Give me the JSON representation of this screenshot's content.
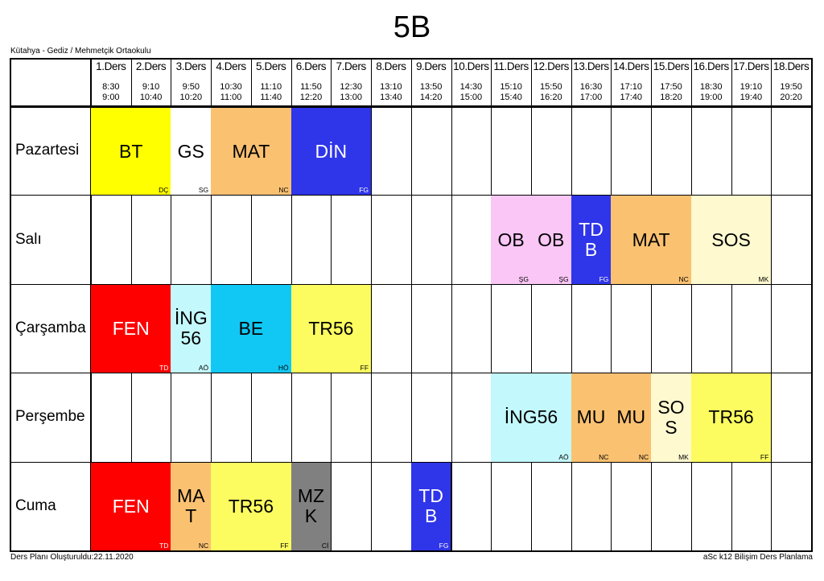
{
  "page": {
    "class_name": "5B",
    "school": "Kütahya - Gediz / Mehmetçik Ortaokulu",
    "created": "Ders Planı Oluşturuldu:22.11.2020",
    "software": "aSc k12 Bilişim Ders Planlama"
  },
  "periods": [
    {
      "name": "1.Ders",
      "time": "8:30\n9:00"
    },
    {
      "name": "2.Ders",
      "time": "9:10\n10:40"
    },
    {
      "name": "3.Ders",
      "time": "9:50\n10:20"
    },
    {
      "name": "4.Ders",
      "time": "10:30\n11:00"
    },
    {
      "name": "5.Ders",
      "time": "11:10\n11:40"
    },
    {
      "name": "6.Ders",
      "time": "11:50\n12:20"
    },
    {
      "name": "7.Ders",
      "time": "12:30\n13:00"
    },
    {
      "name": "8.Ders",
      "time": "13:10\n13:40"
    },
    {
      "name": "9.Ders",
      "time": "13:50\n14:20"
    },
    {
      "name": "10.Ders",
      "time": "14:30\n15:00"
    },
    {
      "name": "11.Ders",
      "time": "15:10\n15:40"
    },
    {
      "name": "12.Ders",
      "time": "15:50\n16:20"
    },
    {
      "name": "13.Ders",
      "time": "16:30\n17:00"
    },
    {
      "name": "14.Ders",
      "time": "17:10\n17:40"
    },
    {
      "name": "15.Ders",
      "time": "17:50\n18:20"
    },
    {
      "name": "16.Ders",
      "time": "18:30\n19:00"
    },
    {
      "name": "17.Ders",
      "time": "19:10\n19:40"
    },
    {
      "name": "18.Ders",
      "time": "19:50\n20:20"
    }
  ],
  "days": [
    "Pazartesi",
    "Salı",
    "Çarşamba",
    "Perşembe",
    "Cuma"
  ],
  "lessons": [
    {
      "day": 0,
      "start": 0,
      "span": 2,
      "subject": "BT",
      "teacher": "DÇ",
      "color": "#ffff00"
    },
    {
      "day": 0,
      "start": 2,
      "span": 1,
      "subject": "GS",
      "teacher": "SG",
      "color": "#ffffff"
    },
    {
      "day": 0,
      "start": 3,
      "span": 2,
      "subject": "MAT",
      "teacher": "NC",
      "color": "#fac171"
    },
    {
      "day": 0,
      "start": 5,
      "span": 2,
      "subject": "DİN",
      "teacher": "FG",
      "color": "#2f35e8"
    },
    {
      "day": 1,
      "start": 10,
      "span": 1,
      "subject": "OB",
      "teacher": "ŞG",
      "color": "#fac6f5"
    },
    {
      "day": 1,
      "start": 11,
      "span": 1,
      "subject": "OB",
      "teacher": "ŞG",
      "color": "#fac6f5"
    },
    {
      "day": 1,
      "start": 12,
      "span": 1,
      "subject": "TDB",
      "teacher": "FG",
      "color": "#2f35e8"
    },
    {
      "day": 1,
      "start": 13,
      "span": 2,
      "subject": "MAT",
      "teacher": "NC",
      "color": "#fac171"
    },
    {
      "day": 1,
      "start": 15,
      "span": 2,
      "subject": "SOS",
      "teacher": "MK",
      "color": "#fef9cf"
    },
    {
      "day": 2,
      "start": 0,
      "span": 2,
      "subject": "FEN",
      "teacher": "TD",
      "color": "#ff0000"
    },
    {
      "day": 2,
      "start": 2,
      "span": 1,
      "subject": "İNG56",
      "teacher": "AÖ",
      "color": "#c3f8fc"
    },
    {
      "day": 2,
      "start": 3,
      "span": 2,
      "subject": "BE",
      "teacher": "HÖ",
      "color": "#11c8f5"
    },
    {
      "day": 2,
      "start": 5,
      "span": 2,
      "subject": "TR56",
      "teacher": "FF",
      "color": "#fcfc60"
    },
    {
      "day": 3,
      "start": 10,
      "span": 2,
      "subject": "İNG56",
      "teacher": "AÖ",
      "color": "#c3f8fc"
    },
    {
      "day": 3,
      "start": 12,
      "span": 1,
      "subject": "MU",
      "teacher": "NC",
      "color": "#fac171"
    },
    {
      "day": 3,
      "start": 13,
      "span": 1,
      "subject": "MU",
      "teacher": "NC",
      "color": "#fac171"
    },
    {
      "day": 3,
      "start": 14,
      "span": 1,
      "subject": "SOS",
      "teacher": "MK",
      "color": "#fef9cf"
    },
    {
      "day": 3,
      "start": 15,
      "span": 2,
      "subject": "TR56",
      "teacher": "FF",
      "color": "#fcfc60"
    },
    {
      "day": 4,
      "start": 0,
      "span": 2,
      "subject": "FEN",
      "teacher": "TD",
      "color": "#ff0000"
    },
    {
      "day": 4,
      "start": 2,
      "span": 1,
      "subject": "MAT",
      "teacher": "NC",
      "color": "#fac171"
    },
    {
      "day": 4,
      "start": 3,
      "span": 2,
      "subject": "TR56",
      "teacher": "FF",
      "color": "#fcfc60"
    },
    {
      "day": 4,
      "start": 5,
      "span": 1,
      "subject": "MZK",
      "teacher": "Cİ",
      "color": "#808080"
    },
    {
      "day": 4,
      "start": 8,
      "span": 1,
      "subject": "TDB",
      "teacher": "FG",
      "color": "#2f35e8"
    }
  ]
}
